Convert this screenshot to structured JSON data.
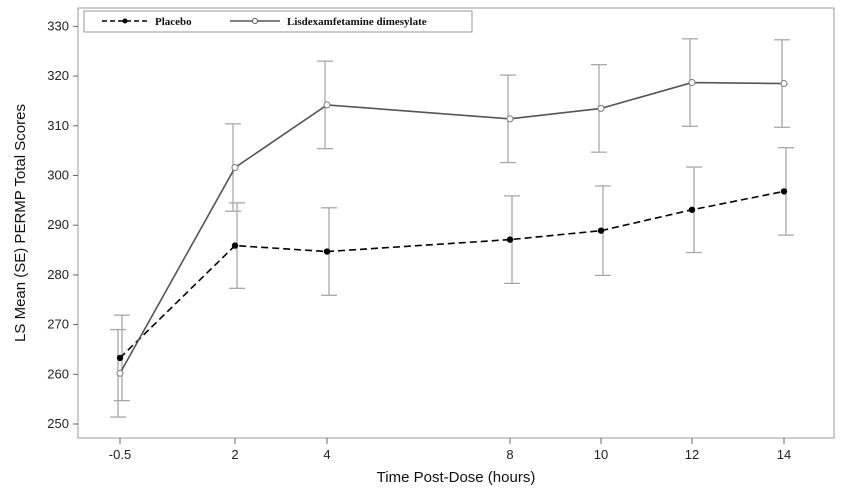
{
  "chart_data": {
    "type": "line",
    "xlabel": "Time Post-Dose (hours)",
    "ylabel": "LS Mean (SE) PERMP Total Scores",
    "x": [
      -0.5,
      2,
      4,
      8,
      10,
      12,
      14
    ],
    "x_tick_labels": [
      "-0.5",
      "2",
      "4",
      "8",
      "10",
      "12",
      "14"
    ],
    "ylim": [
      248,
      332
    ],
    "y_ticks": [
      250,
      260,
      270,
      280,
      290,
      300,
      310,
      320,
      330
    ],
    "grid": false,
    "legend_position": "top-left",
    "series": [
      {
        "name": "Placebo",
        "style": "dashed",
        "color": "#000000",
        "values": [
          263.3,
          285.9,
          284.7,
          287.1,
          288.9,
          293.1,
          296.8
        ],
        "lower": [
          254.7,
          277.3,
          275.9,
          278.3,
          279.9,
          284.5,
          288.0
        ],
        "upper": [
          271.9,
          294.5,
          293.5,
          295.9,
          297.9,
          301.7,
          305.6
        ]
      },
      {
        "name": "Lisdexamfetamine dimesylate",
        "style": "solid",
        "color": "#555555",
        "values": [
          260.2,
          301.6,
          314.2,
          311.4,
          313.5,
          318.7,
          318.5
        ],
        "lower": [
          251.4,
          292.8,
          305.4,
          302.6,
          304.7,
          309.9,
          309.7
        ],
        "upper": [
          269.0,
          310.4,
          323.0,
          320.2,
          322.3,
          327.5,
          327.3
        ]
      }
    ]
  }
}
